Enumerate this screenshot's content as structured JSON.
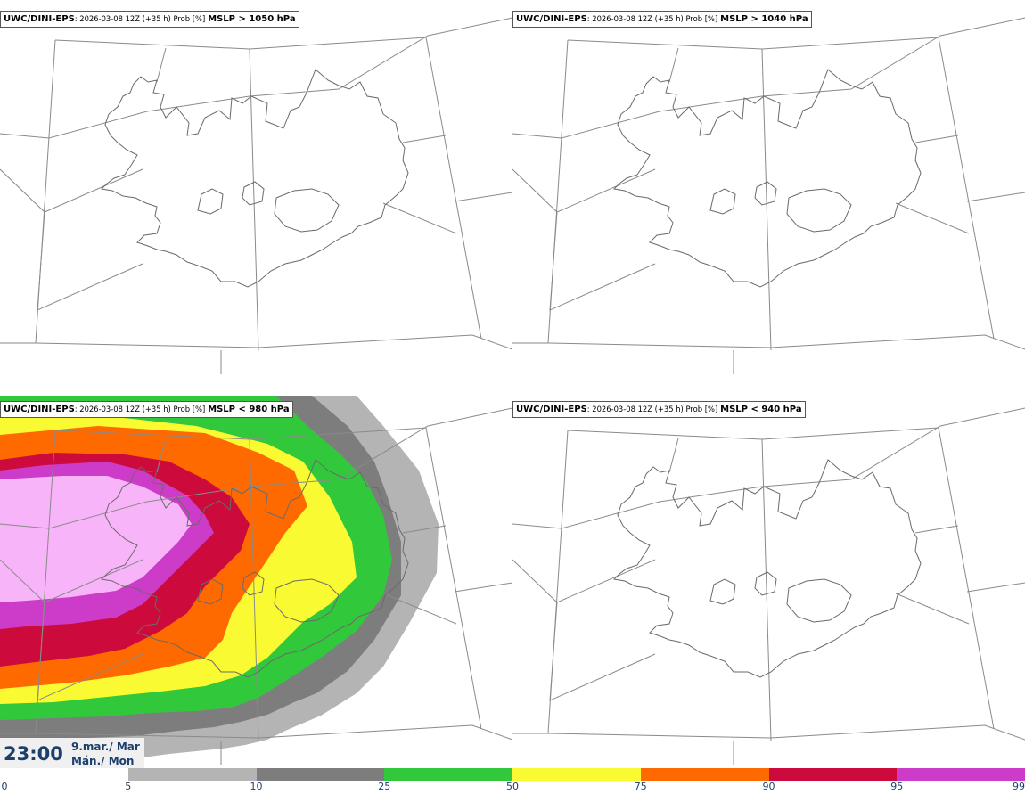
{
  "panels": [
    {
      "model": "UWC/DINI-EPS",
      "meta": ": 2026-03-08 12Z (+35 h) Prob [%]",
      "threshold": "MSLP > 1050 hPa",
      "filled": false
    },
    {
      "model": "UWC/DINI-EPS",
      "meta": ": 2026-03-08 12Z (+35 h) Prob [%]",
      "threshold": "MSLP > 1040 hPa",
      "filled": false
    },
    {
      "model": "UWC/DINI-EPS",
      "meta": ": 2026-03-08 12Z (+35 h) Prob [%]",
      "threshold": "MSLP < 980 hPa",
      "filled": true
    },
    {
      "model": "UWC/DINI-EPS",
      "meta": ": 2026-03-08 12Z (+35 h) Prob [%]",
      "threshold": "MSLP < 940 hPa",
      "filled": false
    }
  ],
  "valid_time": {
    "time": "23:00",
    "date_line1": "9.mar./ Mar",
    "date_line2": "Mán./ Mon"
  },
  "colorbar": {
    "ticks": [
      "0",
      "5",
      "10",
      "25",
      "50",
      "75",
      "90",
      "95",
      "99"
    ],
    "colors": [
      "#ffffff",
      "#b4b4b4",
      "#7d7d7d",
      "#32c83c",
      "#fafa32",
      "#ff6a00",
      "#cc0a3c",
      "#cc3cc8",
      "#f8b4f8"
    ]
  },
  "probability_levels": [
    5,
    10,
    25,
    50,
    75,
    90,
    95,
    99
  ]
}
